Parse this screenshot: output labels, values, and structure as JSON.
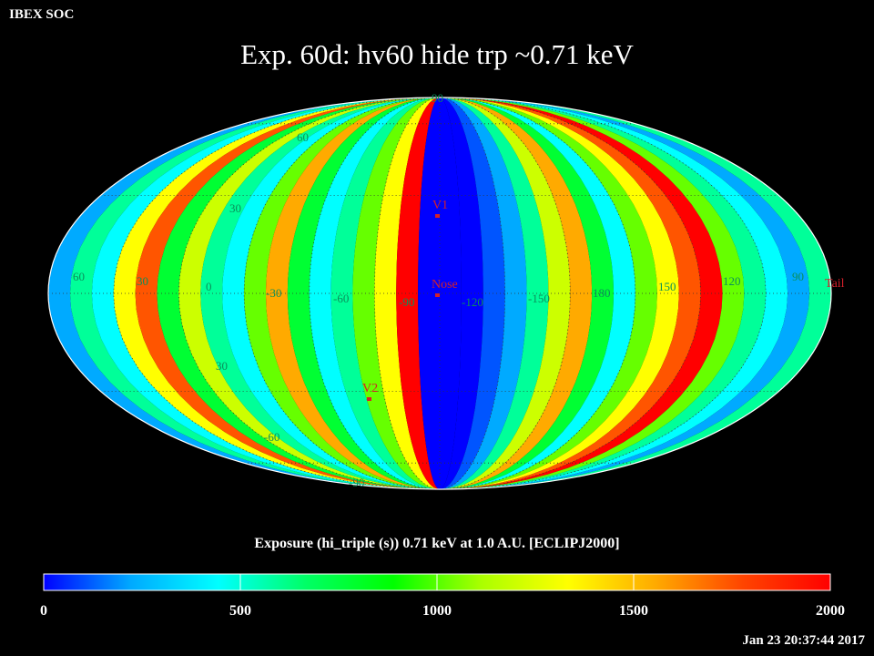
{
  "header": {
    "org": "IBEX SOC",
    "title": "Exp.   60d: hv60 hide trp ~0.71 keV"
  },
  "map": {
    "projection": "Mollweide (Aitoff-style) ellipse, ecliptic J2000",
    "lat_labels": [
      "60",
      "30",
      "30",
      "-60",
      "-90",
      "90"
    ],
    "lon_labels": [
      "60",
      "30",
      "0",
      "-30",
      "-60",
      "-90",
      "-120",
      "-150",
      "180",
      "150",
      "120",
      "90"
    ],
    "markers": [
      {
        "name": "V1",
        "color": "#d4202a"
      },
      {
        "name": "Nose",
        "color": "#d4202a"
      },
      {
        "name": "V2",
        "color": "#d4202a"
      },
      {
        "name": "Tail",
        "color": "#d4202a"
      }
    ],
    "pole_label": "90"
  },
  "colorbar": {
    "label": "Exposure (hi_triple (s))  0.71 keV at 1.0 A.U. [ECLIPJ2000]",
    "min": 0,
    "max": 2000,
    "ticks": [
      "0",
      "500",
      "1000",
      "1500",
      "2000"
    ],
    "colors": [
      "#0000ff",
      "#00aaff",
      "#00ffff",
      "#00ff66",
      "#00ff00",
      "#aaff00",
      "#ffff00",
      "#ffaa00",
      "#ff4400",
      "#ff0000"
    ]
  },
  "footer": {
    "timestamp": "Jan 23 20:37:44 2017"
  }
}
